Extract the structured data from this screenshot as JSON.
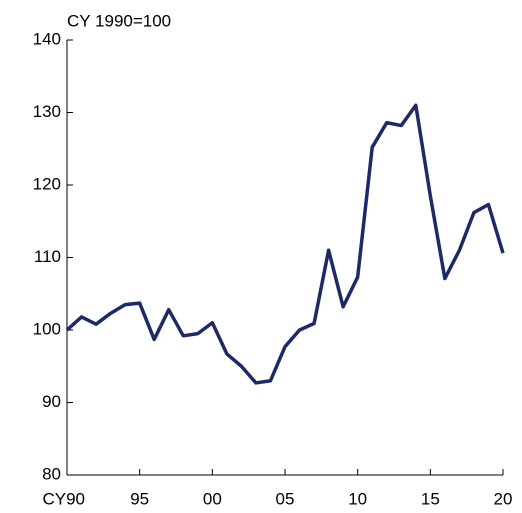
{
  "chart_data": {
    "type": "line",
    "y_label": "CY 1990=100",
    "x": [
      1990,
      1991,
      1992,
      1993,
      1994,
      1995,
      1996,
      1997,
      1998,
      1999,
      2000,
      2001,
      2002,
      2003,
      2004,
      2005,
      2006,
      2007,
      2008,
      2009,
      2010,
      2011,
      2012,
      2013,
      2014,
      2015,
      2016,
      2017,
      2018,
      2019,
      2020
    ],
    "values": [
      100,
      101.8,
      100.8,
      102.3,
      103.5,
      103.7,
      98.7,
      102.8,
      99.2,
      99.5,
      101,
      96.7,
      95,
      92.7,
      93,
      97.7,
      100,
      100.9,
      111,
      103.2,
      107.3,
      125.2,
      128.6,
      128.2,
      131,
      118.5,
      107.1,
      111,
      116.2,
      117.3,
      110.6
    ],
    "color": "#1c2a66",
    "xlim": [
      1990,
      2020
    ],
    "xticks": [
      {
        "value": 1990,
        "label": "CY90"
      },
      {
        "value": 1995,
        "label": "95"
      },
      {
        "value": 2000,
        "label": "00"
      },
      {
        "value": 2005,
        "label": "05"
      },
      {
        "value": 2010,
        "label": "10"
      },
      {
        "value": 2015,
        "label": "15"
      },
      {
        "value": 2020,
        "label": "20"
      }
    ],
    "ylim": [
      80,
      140
    ],
    "yticks": [
      80,
      90,
      100,
      110,
      120,
      130,
      140
    ]
  }
}
